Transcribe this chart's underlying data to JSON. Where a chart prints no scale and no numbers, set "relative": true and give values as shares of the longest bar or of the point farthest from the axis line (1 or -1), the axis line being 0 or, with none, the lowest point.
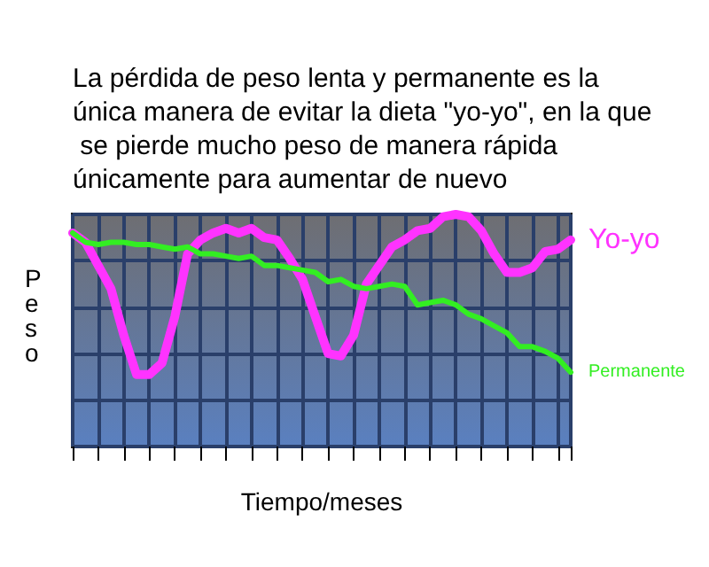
{
  "chart_data": {
    "type": "line",
    "title": "La pérdida de peso lenta y permanente es la única manera de evitar la dieta \"yo-yo\", en la que se pierde mucho peso de manera rápida únicamente para aumentar de nuevo",
    "xlabel": "Tiempo/meses",
    "ylabel": "Peso",
    "relative": true,
    "grid": true,
    "legend": false,
    "line_style": "solid",
    "categories": [
      null,
      null,
      null,
      null,
      null,
      null,
      null,
      null,
      null,
      null,
      null,
      null,
      null,
      null,
      null,
      null,
      null,
      null,
      null,
      null,
      null,
      null,
      null,
      null,
      null,
      null,
      null,
      null,
      null,
      null,
      null,
      null,
      null,
      null,
      null,
      null,
      null,
      null,
      null,
      null
    ],
    "series": [
      {
        "name": "Yo-yo",
        "color": "#ff33ff",
        "values": [
          0.92,
          0.88,
          0.78,
          0.68,
          0.48,
          0.31,
          0.31,
          0.36,
          0.56,
          0.83,
          0.89,
          0.92,
          0.94,
          0.92,
          0.94,
          0.9,
          0.89,
          0.81,
          0.72,
          0.56,
          0.4,
          0.39,
          0.48,
          0.7,
          0.78,
          0.86,
          0.89,
          0.93,
          0.94,
          0.99,
          1,
          0.99,
          0.93,
          0.83,
          0.75,
          0.75,
          0.77,
          0.84,
          0.85,
          0.89
        ]
      },
      {
        "name": "Permanente",
        "color": "#33ee22",
        "values": [
          0.92,
          0.88,
          0.87,
          0.88,
          0.88,
          0.87,
          0.87,
          0.86,
          0.85,
          0.86,
          0.83,
          0.83,
          0.82,
          0.81,
          0.82,
          0.78,
          0.78,
          0.77,
          0.76,
          0.75,
          0.71,
          0.72,
          0.69,
          0.68,
          0.69,
          0.7,
          0.69,
          0.61,
          0.62,
          0.63,
          0.61,
          0.57,
          0.55,
          0.52,
          0.49,
          0.43,
          0.43,
          0.41,
          0.38,
          0.32
        ]
      }
    ]
  }
}
